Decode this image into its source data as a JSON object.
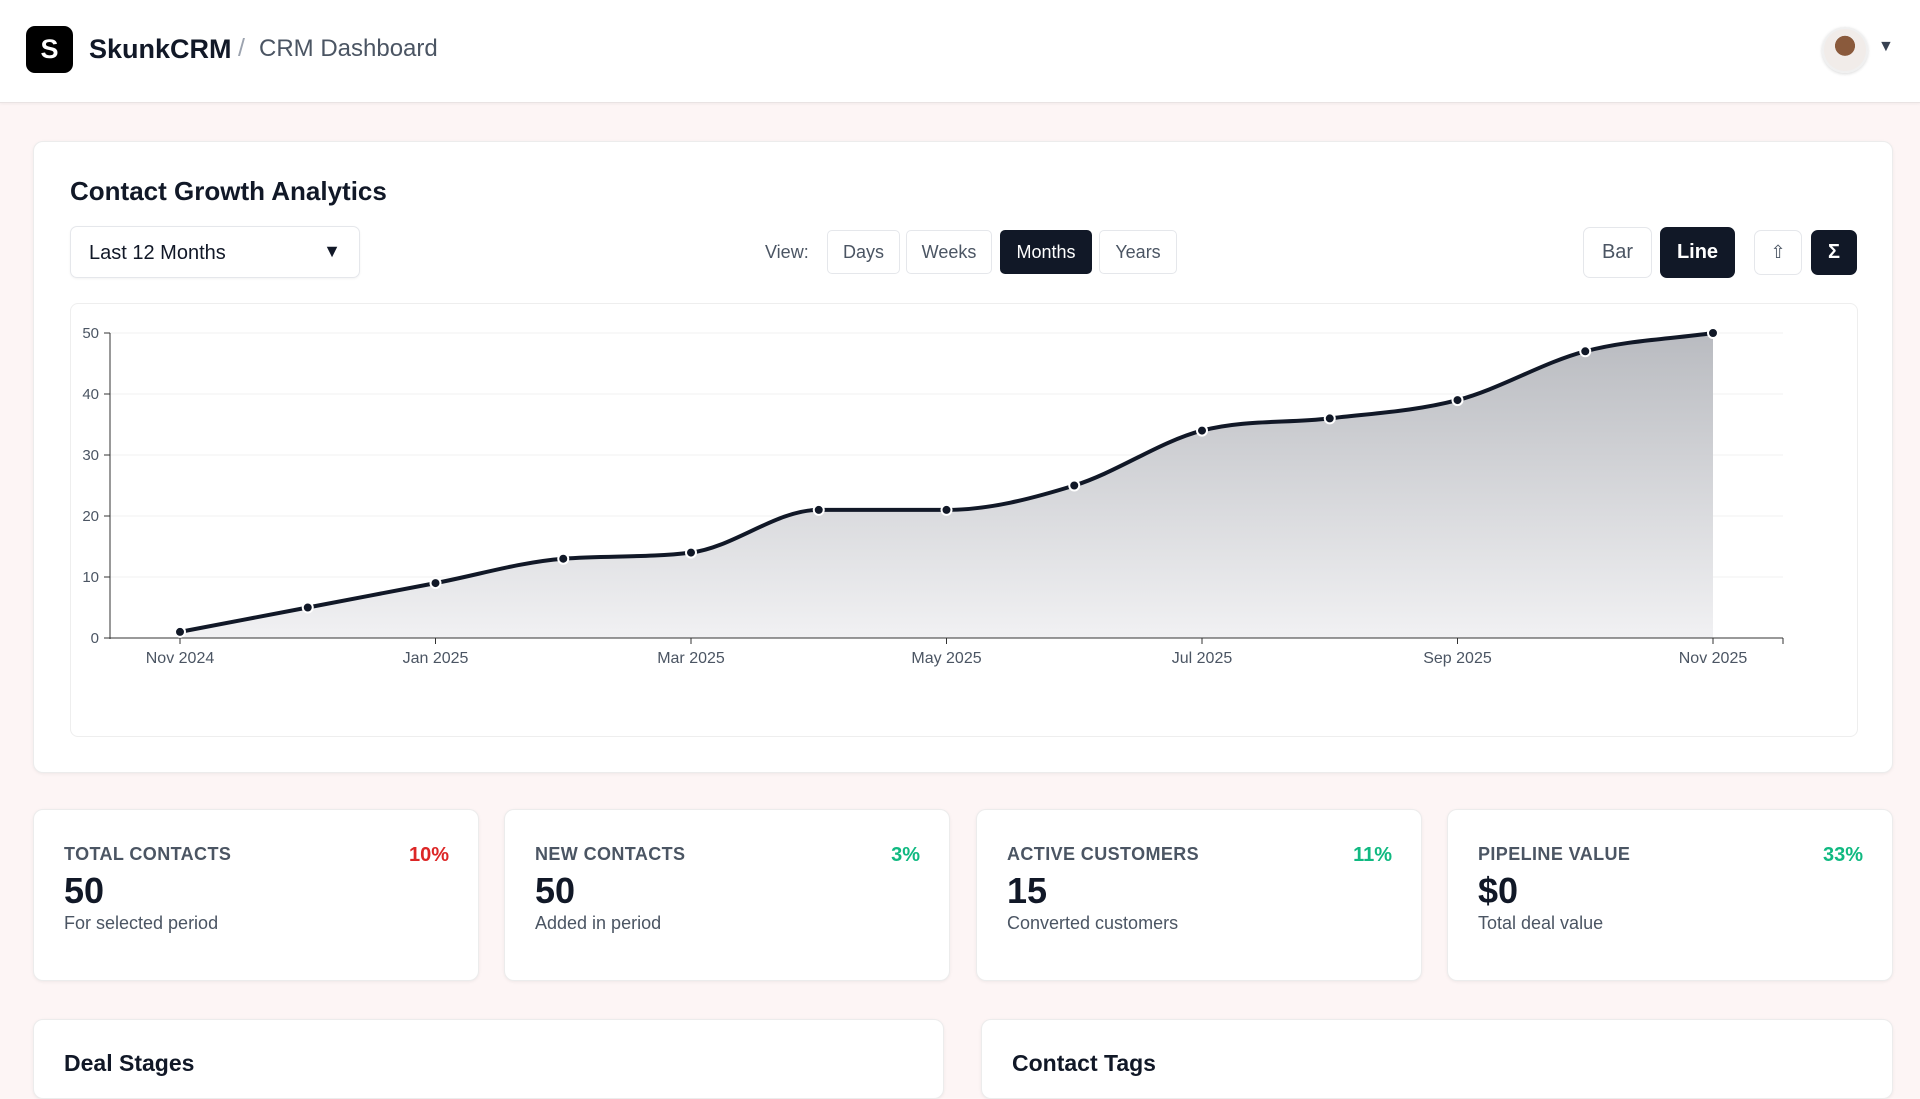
{
  "header": {
    "logo_letter": "S",
    "brand": "SkunkCRM",
    "separator": "/",
    "breadcrumb": "CRM Dashboard",
    "avatar_icon": "user-avatar",
    "caret": "▼"
  },
  "analytics": {
    "title": "Contact Growth Analytics",
    "range_select": {
      "value": "Last 12 Months",
      "arrow": "▼"
    },
    "view_label": "View:",
    "views": [
      {
        "label": "Days",
        "active": false
      },
      {
        "label": "Weeks",
        "active": false
      },
      {
        "label": "Months",
        "active": true
      },
      {
        "label": "Years",
        "active": false
      }
    ],
    "chart_types": [
      {
        "label": "Bar",
        "active": false
      },
      {
        "label": "Line",
        "active": true
      }
    ],
    "export_icon": "⇧",
    "sum_icon": "Σ"
  },
  "chart_data": {
    "type": "area",
    "x": [
      "Nov 2024",
      "Dec 2024",
      "Jan 2025",
      "Feb 2025",
      "Mar 2025",
      "Apr 2025",
      "May 2025",
      "Jun 2025",
      "Jul 2025",
      "Aug 2025",
      "Sep 2025",
      "Oct 2025",
      "Nov 2025"
    ],
    "values": [
      1,
      5,
      9,
      13,
      14,
      21,
      21,
      25,
      34,
      36,
      39,
      47,
      50
    ],
    "x_tick_labels": [
      "Nov 2024",
      "Jan 2025",
      "Mar 2025",
      "May 2025",
      "Jul 2025",
      "Sep 2025",
      "Nov 2025"
    ],
    "y_ticks": [
      0,
      10,
      20,
      30,
      40,
      50
    ],
    "ylim": [
      0,
      50
    ],
    "grid": "horizontal",
    "line_color": "#111827"
  },
  "stats": [
    {
      "label": "TOTAL CONTACTS",
      "change": "10%",
      "change_color": "#dc2626",
      "value": "50",
      "sub": "For selected period"
    },
    {
      "label": "NEW CONTACTS",
      "change": "3%",
      "change_color": "#10b981",
      "value": "50",
      "sub": "Added in period"
    },
    {
      "label": "ACTIVE CUSTOMERS",
      "change": "11%",
      "change_color": "#10b981",
      "value": "15",
      "sub": "Converted customers"
    },
    {
      "label": "PIPELINE VALUE",
      "change": "33%",
      "change_color": "#10b981",
      "value": "$0",
      "sub": "Total deal value"
    }
  ],
  "sections": {
    "deal_stages": "Deal Stages",
    "contact_tags": "Contact Tags"
  }
}
